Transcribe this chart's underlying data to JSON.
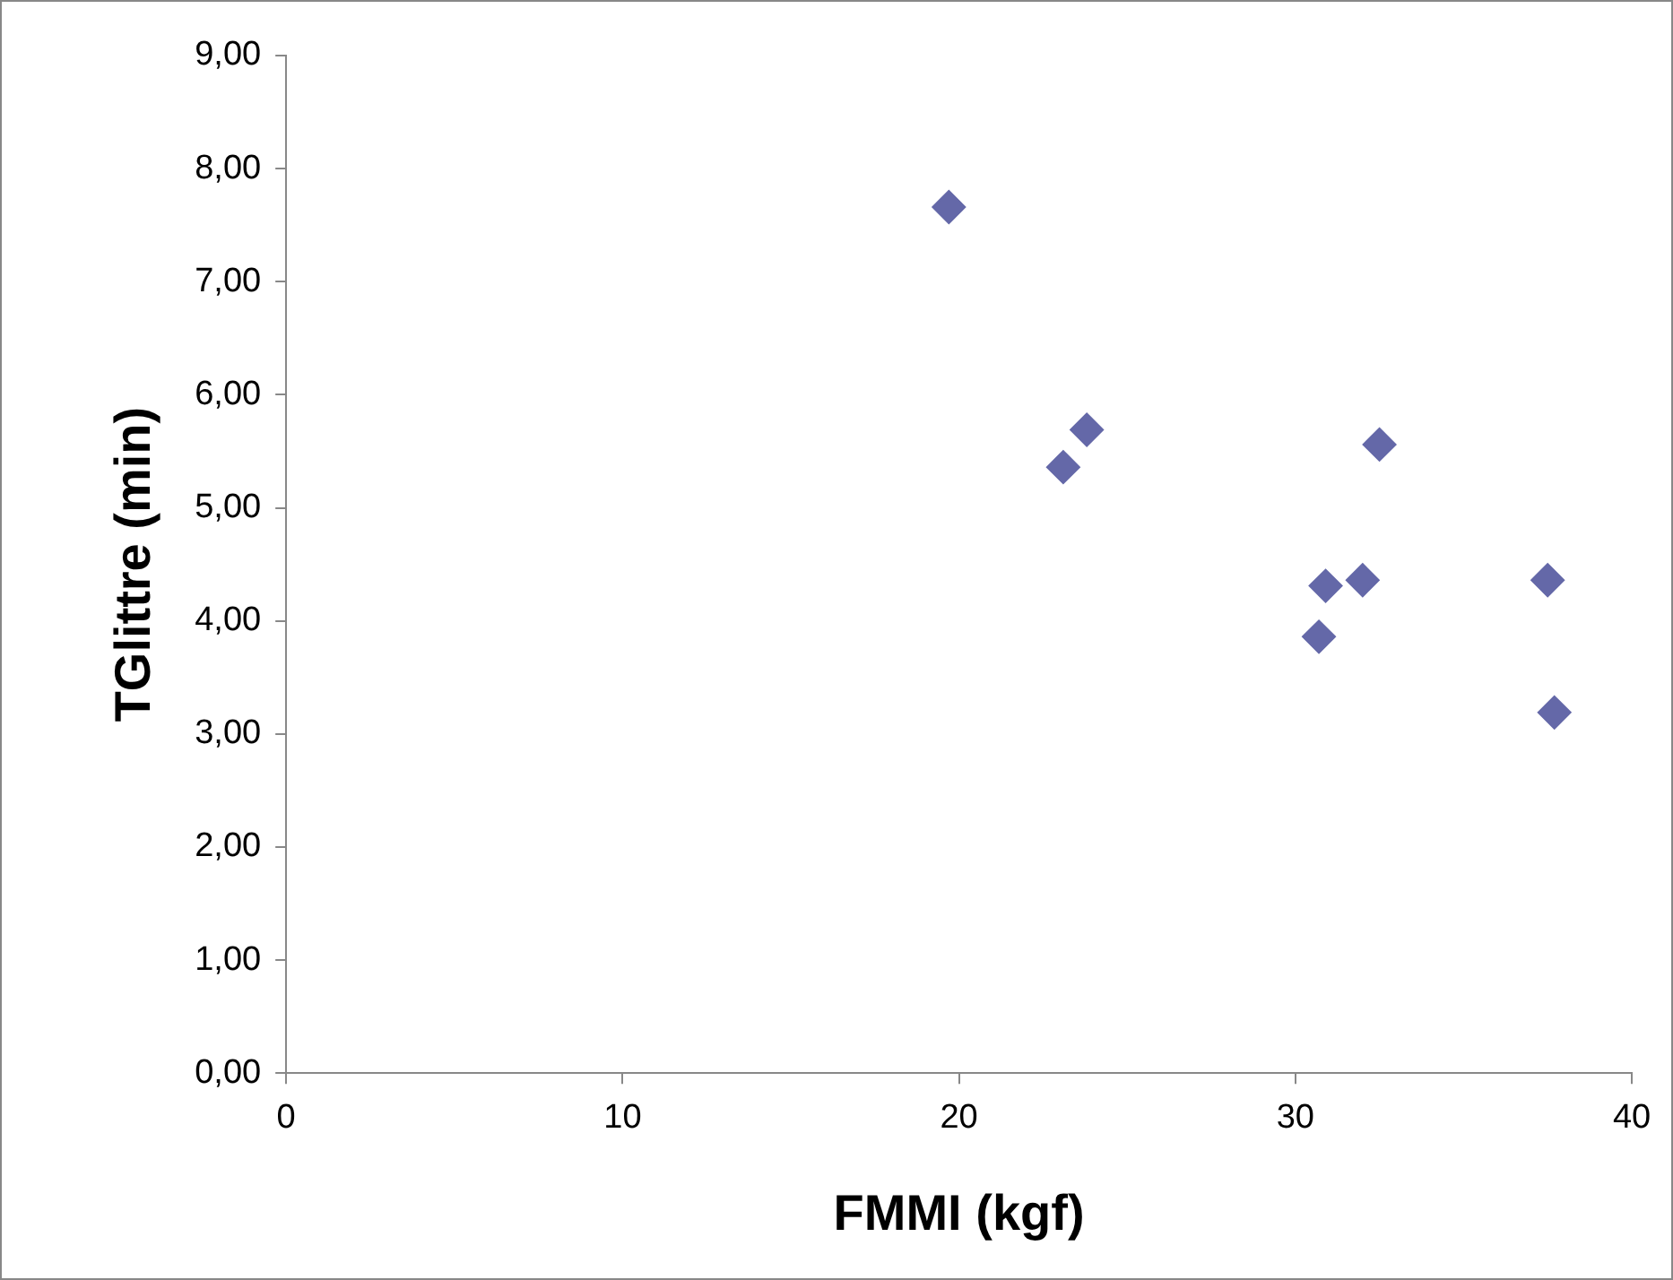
{
  "chart_data": {
    "type": "scatter",
    "xlabel": "FMMI (kgf)",
    "ylabel": "TGlittre (min)",
    "marker": "diamond",
    "grid": false,
    "legend": false,
    "xlim": [
      0,
      40
    ],
    "xticks": [
      0,
      10,
      20,
      30,
      40
    ],
    "ylim": [
      0,
      9
    ],
    "yticks": [
      {
        "value": 0,
        "label": "0,00"
      },
      {
        "value": 1,
        "label": "1,00"
      },
      {
        "value": 2,
        "label": "2,00"
      },
      {
        "value": 3,
        "label": "3,00"
      },
      {
        "value": 4,
        "label": "4,00"
      },
      {
        "value": 5,
        "label": "5,00"
      },
      {
        "value": 6,
        "label": "6,00"
      },
      {
        "value": 7,
        "label": "7,00"
      },
      {
        "value": 8,
        "label": "8,00"
      },
      {
        "value": 9,
        "label": "9,00"
      }
    ],
    "series": [
      {
        "color": "#6468a8",
        "x": [
          19.7,
          23.1,
          23.8,
          32.5,
          30.9,
          32.0,
          30.7,
          37.5,
          37.7
        ],
        "values": [
          7.66,
          5.36,
          5.69,
          5.56,
          4.31,
          4.36,
          3.86,
          4.36,
          3.19
        ]
      }
    ]
  }
}
